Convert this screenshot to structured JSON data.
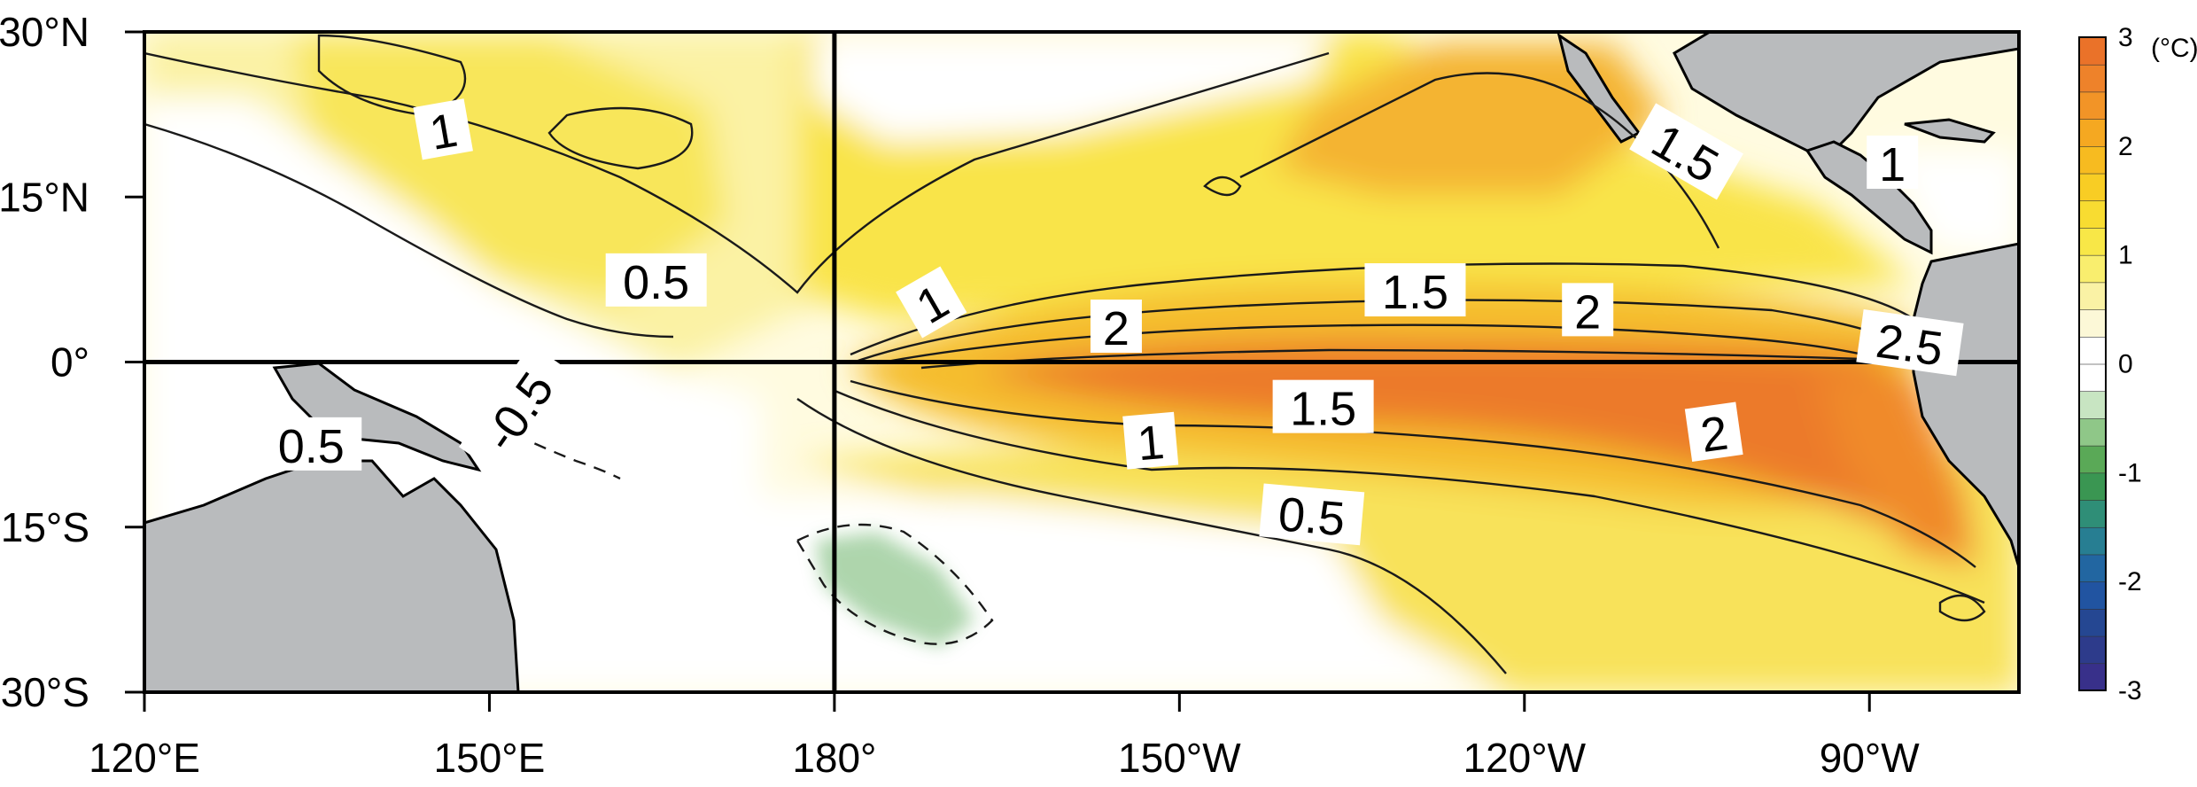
{
  "map": {
    "lon_range": [
      120,
      283
    ],
    "lat_range": [
      -30,
      30
    ],
    "x_ticks": [
      {
        "lon": 120,
        "label": "120°E"
      },
      {
        "lon": 150,
        "label": "150°E"
      },
      {
        "lon": 180,
        "label": "180°"
      },
      {
        "lon": 210,
        "label": "150°W"
      },
      {
        "lon": 240,
        "label": "120°W"
      },
      {
        "lon": 270,
        "label": "90°W"
      }
    ],
    "y_ticks": [
      {
        "lat": 30,
        "label": "30°N"
      },
      {
        "lat": 15,
        "label": "15°N"
      },
      {
        "lat": 0,
        "label": "0°"
      },
      {
        "lat": -15,
        "label": "-15°S"
      },
      {
        "lat": -30,
        "label": "30°S"
      }
    ],
    "reference_lines": {
      "equator_lat": 0,
      "meridian_lon": 180
    },
    "contour_labels": [
      {
        "text": "1",
        "lon": 146,
        "lat": 21,
        "rot": -10
      },
      {
        "text": "0.5",
        "lon": 164.5,
        "lat": 7.3,
        "rot": 0
      },
      {
        "text": "1",
        "lon": 188.5,
        "lat": 5.3,
        "rot": -30
      },
      {
        "text": "2",
        "lon": 204.5,
        "lat": 3.1,
        "rot": 0
      },
      {
        "text": "1.5",
        "lon": 230.5,
        "lat": 6.4,
        "rot": 0
      },
      {
        "text": "2",
        "lon": 245.5,
        "lat": 4.6,
        "rot": 0
      },
      {
        "text": "2.5",
        "lon": 273.5,
        "lat": 1.6,
        "rot": 8
      },
      {
        "text": "1.5",
        "lon": 254,
        "lat": 19,
        "rot": 30
      },
      {
        "text": "1",
        "lon": 272,
        "lat": 18,
        "rot": 0
      },
      {
        "text": "1.5",
        "lon": 222.5,
        "lat": -4.2,
        "rot": 0
      },
      {
        "text": "1",
        "lon": 207.5,
        "lat": -7.3,
        "rot": -5
      },
      {
        "text": "2",
        "lon": 256.5,
        "lat": -6.5,
        "rot": -8
      },
      {
        "text": "0.5",
        "lon": 221.5,
        "lat": -14,
        "rot": 5
      },
      {
        "text": "0.5",
        "lon": 134.5,
        "lat": -7.6,
        "rot": 0
      },
      {
        "text": "-0.5",
        "lon": 152.5,
        "lat": -4.5,
        "rot": -55
      }
    ]
  },
  "colorbar": {
    "unit_label": "(°C)",
    "range": [
      -3,
      3
    ],
    "ticks": [
      {
        "value": 3,
        "label": "3"
      },
      {
        "value": 2,
        "label": "2"
      },
      {
        "value": 1,
        "label": "1"
      },
      {
        "value": 0,
        "label": "0"
      },
      {
        "value": -1,
        "label": "-1"
      },
      {
        "value": -2,
        "label": "-2"
      },
      {
        "value": -3,
        "label": "-3"
      }
    ],
    "stops": [
      {
        "value": -3,
        "color": "#3d2a8a"
      },
      {
        "value": -2.5,
        "color": "#27408b"
      },
      {
        "value": -2,
        "color": "#1f5aa8"
      },
      {
        "value": -1.5,
        "color": "#2a8a8a"
      },
      {
        "value": -1,
        "color": "#3f9a3f"
      },
      {
        "value": -0.5,
        "color": "#a9d6a0"
      },
      {
        "value": -0.15,
        "color": "#ffffff"
      },
      {
        "value": 0.15,
        "color": "#ffffff"
      },
      {
        "value": 0.5,
        "color": "#faf4c0"
      },
      {
        "value": 1,
        "color": "#f8ec52"
      },
      {
        "value": 1.5,
        "color": "#f8d626"
      },
      {
        "value": 2,
        "color": "#f6b21e"
      },
      {
        "value": 2.5,
        "color": "#f08a2a"
      },
      {
        "value": 3,
        "color": "#e86a28"
      }
    ]
  },
  "colors": {
    "land": "#b9bbbd",
    "ocean_base": "#fffbe0",
    "contour": "#1a1a1a"
  }
}
